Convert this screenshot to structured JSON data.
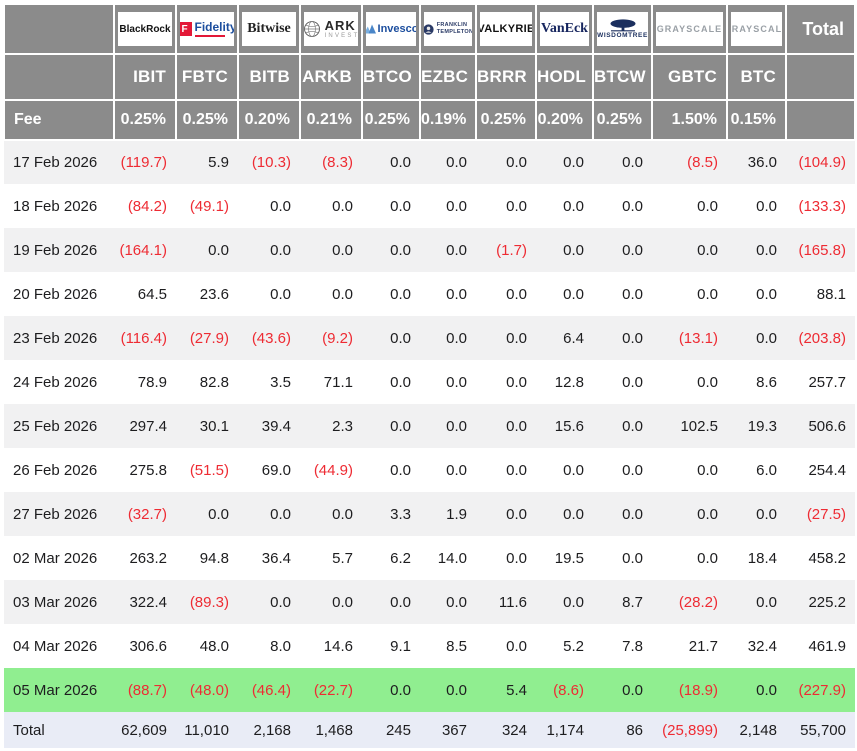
{
  "table": {
    "fee_label": "Fee",
    "total_label": "Total",
    "providers": [
      {
        "company": "BlackRock",
        "logo": "blackrock",
        "logo_text": "BlackRock",
        "logo_sub": "",
        "ticker": "IBIT",
        "fee": "0.25%"
      },
      {
        "company": "Fidelity",
        "logo": "fidelity",
        "logo_text": "Fidelity",
        "logo_sub": "F",
        "ticker": "FBTC",
        "fee": "0.25%"
      },
      {
        "company": "Bitwise",
        "logo": "bitwise",
        "logo_text": "Bitwise",
        "logo_sub": "",
        "ticker": "BITB",
        "fee": "0.20%"
      },
      {
        "company": "ARK Invest",
        "logo": "ark",
        "logo_text": "ARK",
        "logo_sub": "INVEST",
        "ticker": "ARKB",
        "fee": "0.21%"
      },
      {
        "company": "Invesco",
        "logo": "invesco",
        "logo_text": "Invesco",
        "logo_sub": "",
        "ticker": "BTCO",
        "fee": "0.25%"
      },
      {
        "company": "Franklin Templeton",
        "logo": "franklin",
        "logo_text": "FRANKLIN",
        "logo_sub": "TEMPLETON",
        "ticker": "EZBC",
        "fee": "0.19%"
      },
      {
        "company": "Valkyrie",
        "logo": "valkyrie",
        "logo_text": "VALKYRIE",
        "logo_sub": "",
        "ticker": "BRRR",
        "fee": "0.25%"
      },
      {
        "company": "VanEck",
        "logo": "vaneck",
        "logo_text": "VanEck",
        "logo_sub": "",
        "ticker": "HODL",
        "fee": "0.20%"
      },
      {
        "company": "WisdomTree",
        "logo": "wisdomtree",
        "logo_text": "WISDOMTREE",
        "logo_sub": "",
        "ticker": "BTCW",
        "fee": "0.25%"
      },
      {
        "company": "Grayscale",
        "logo": "grayscale",
        "logo_text": "GRAYSCALE",
        "logo_sub": "",
        "ticker": "GBTC",
        "fee": "1.50%"
      },
      {
        "company": "Grayscale",
        "logo": "grayscale",
        "logo_text": "GRAYSCALE",
        "logo_sub": "",
        "ticker": "BTC",
        "fee": "0.15%"
      }
    ],
    "rows": [
      {
        "date": "17 Feb 2026",
        "values": [
          "(119.7)",
          "5.9",
          "(10.3)",
          "(8.3)",
          "0.0",
          "0.0",
          "0.0",
          "0.0",
          "0.0",
          "(8.5)",
          "36.0"
        ],
        "total": "(104.9)",
        "highlight": false
      },
      {
        "date": "18 Feb 2026",
        "values": [
          "(84.2)",
          "(49.1)",
          "0.0",
          "0.0",
          "0.0",
          "0.0",
          "0.0",
          "0.0",
          "0.0",
          "0.0",
          "0.0"
        ],
        "total": "(133.3)",
        "highlight": false
      },
      {
        "date": "19 Feb 2026",
        "values": [
          "(164.1)",
          "0.0",
          "0.0",
          "0.0",
          "0.0",
          "0.0",
          "(1.7)",
          "0.0",
          "0.0",
          "0.0",
          "0.0"
        ],
        "total": "(165.8)",
        "highlight": false
      },
      {
        "date": "20 Feb 2026",
        "values": [
          "64.5",
          "23.6",
          "0.0",
          "0.0",
          "0.0",
          "0.0",
          "0.0",
          "0.0",
          "0.0",
          "0.0",
          "0.0"
        ],
        "total": "88.1",
        "highlight": false
      },
      {
        "date": "23 Feb 2026",
        "values": [
          "(116.4)",
          "(27.9)",
          "(43.6)",
          "(9.2)",
          "0.0",
          "0.0",
          "0.0",
          "6.4",
          "0.0",
          "(13.1)",
          "0.0"
        ],
        "total": "(203.8)",
        "highlight": false
      },
      {
        "date": "24 Feb 2026",
        "values": [
          "78.9",
          "82.8",
          "3.5",
          "71.1",
          "0.0",
          "0.0",
          "0.0",
          "12.8",
          "0.0",
          "0.0",
          "8.6"
        ],
        "total": "257.7",
        "highlight": false
      },
      {
        "date": "25 Feb 2026",
        "values": [
          "297.4",
          "30.1",
          "39.4",
          "2.3",
          "0.0",
          "0.0",
          "0.0",
          "15.6",
          "0.0",
          "102.5",
          "19.3"
        ],
        "total": "506.6",
        "highlight": false
      },
      {
        "date": "26 Feb 2026",
        "values": [
          "275.8",
          "(51.5)",
          "69.0",
          "(44.9)",
          "0.0",
          "0.0",
          "0.0",
          "0.0",
          "0.0",
          "0.0",
          "6.0"
        ],
        "total": "254.4",
        "highlight": false
      },
      {
        "date": "27 Feb 2026",
        "values": [
          "(32.7)",
          "0.0",
          "0.0",
          "0.0",
          "3.3",
          "1.9",
          "0.0",
          "0.0",
          "0.0",
          "0.0",
          "0.0"
        ],
        "total": "(27.5)",
        "highlight": false
      },
      {
        "date": "02 Mar 2026",
        "values": [
          "263.2",
          "94.8",
          "36.4",
          "5.7",
          "6.2",
          "14.0",
          "0.0",
          "19.5",
          "0.0",
          "0.0",
          "18.4"
        ],
        "total": "458.2",
        "highlight": false
      },
      {
        "date": "03 Mar 2026",
        "values": [
          "322.4",
          "(89.3)",
          "0.0",
          "0.0",
          "0.0",
          "0.0",
          "11.6",
          "0.0",
          "8.7",
          "(28.2)",
          "0.0"
        ],
        "total": "225.2",
        "highlight": false
      },
      {
        "date": "04 Mar 2026",
        "values": [
          "306.6",
          "48.0",
          "8.0",
          "14.6",
          "9.1",
          "8.5",
          "0.0",
          "5.2",
          "7.8",
          "21.7",
          "32.4"
        ],
        "total": "461.9",
        "highlight": false
      },
      {
        "date": "05 Mar 2026",
        "values": [
          "(88.7)",
          "(48.0)",
          "(46.4)",
          "(22.7)",
          "0.0",
          "0.0",
          "5.4",
          "(8.6)",
          "0.0",
          "(18.9)",
          "0.0"
        ],
        "total": "(227.9)",
        "highlight": true
      }
    ],
    "totals": {
      "label": "Total",
      "values": [
        "62,609",
        "11,010",
        "2,168",
        "1,468",
        "245",
        "367",
        "324",
        "1,174",
        "86",
        "(25,899)",
        "2,148"
      ],
      "total": "55,700"
    }
  },
  "colors": {
    "header_bg": "#8b8b8b",
    "stripe_bg": "#f1f1f2",
    "highlight_green": "#90ee90",
    "totals_row_bg": "#e9ecf6",
    "negative_red": "#ee2b33",
    "fidelity_red": "#e31837",
    "navy": "#1b2f5e",
    "invesco_blue": "#1c4e9e",
    "grayscale_gray": "#9aa0a6"
  }
}
